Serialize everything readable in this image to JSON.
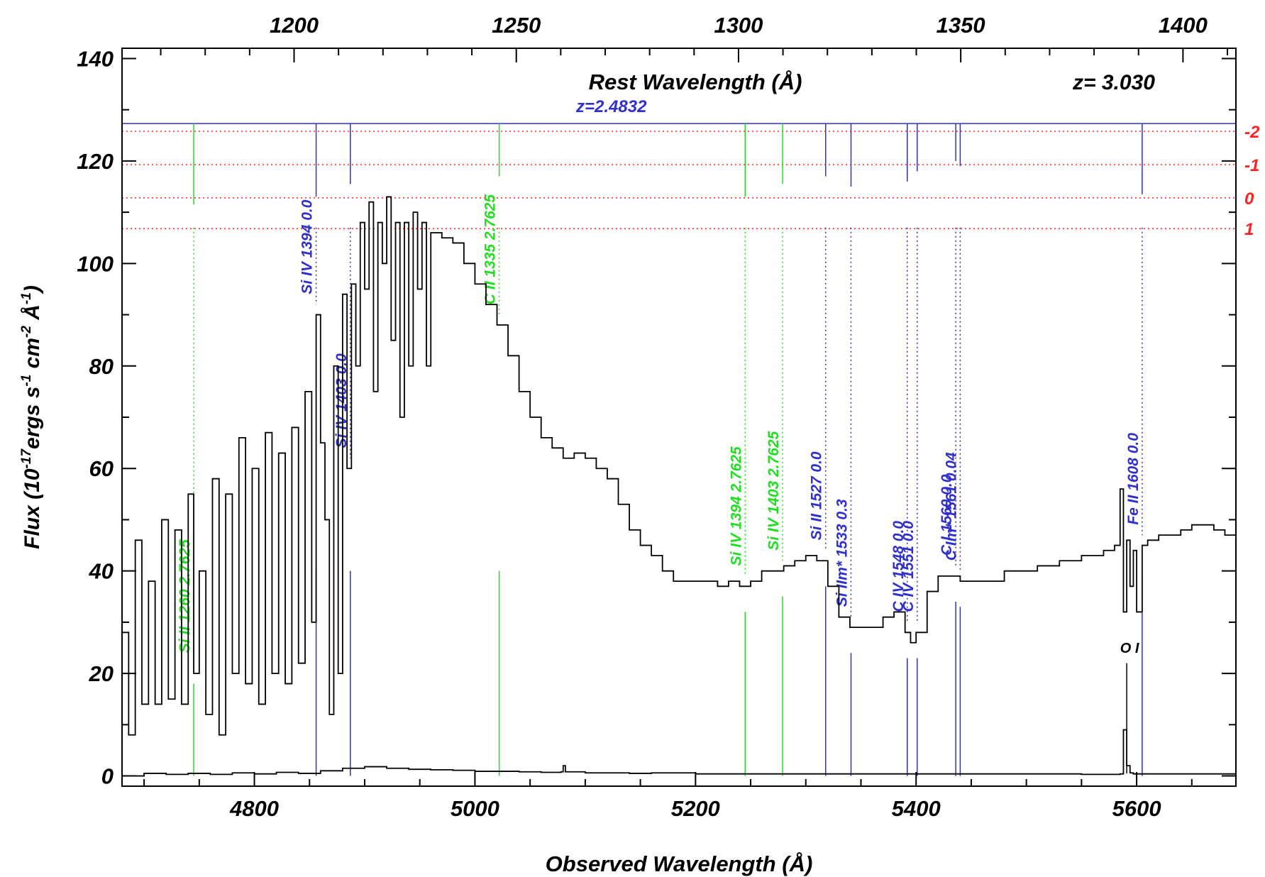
{
  "chart_data": {
    "type": "line",
    "xlabel": "Observed Wavelength (Å)",
    "ylabel": "Flux (10-17ergs s-1 cm-2 Å-1)",
    "ylabel_parts": [
      "Flux (10",
      "-17",
      "ergs s",
      "-1",
      " cm",
      "-2",
      " Å",
      "-1",
      ")"
    ],
    "top_axis_label": "Rest Wavelength (Å)",
    "redshift_label": "z= 3.030",
    "absorber_label": "z=2.4832",
    "xlim": [
      4680,
      5690
    ],
    "ylim": [
      -2,
      142
    ],
    "x_ticks": [
      "4800",
      "5000",
      "5200",
      "5400",
      "5600"
    ],
    "x_tick_values": [
      4800,
      5000,
      5200,
      5400,
      5600
    ],
    "y_ticks": [
      "0",
      "20",
      "40",
      "60",
      "80",
      "100",
      "120",
      "140"
    ],
    "y_tick_values": [
      0,
      20,
      40,
      60,
      80,
      100,
      120,
      140
    ],
    "top_ticks": [
      "1200",
      "1250",
      "1300",
      "1350",
      "1400"
    ],
    "top_tick_values": [
      1200,
      1250,
      1300,
      1350,
      1400
    ],
    "emission_z": 3.03,
    "right_scale_labels": [
      "-2",
      "-1",
      "0",
      "1"
    ],
    "right_scale_y": [
      125.8,
      119.3,
      112.8,
      106.8
    ],
    "marker_baseline_y": 127.3,
    "grid": false,
    "series": [
      {
        "role": "flux",
        "color": "#000000",
        "x": [
          4680,
          4686,
          4692,
          4698,
          4704,
          4710,
          4716,
          4722,
          4728,
          4734,
          4740,
          4745,
          4750,
          4756,
          4762,
          4768,
          4774,
          4780,
          4786,
          4792,
          4798,
          4804,
          4810,
          4816,
          4822,
          4828,
          4834,
          4840,
          4846,
          4852,
          4856,
          4860,
          4864,
          4868,
          4872,
          4876,
          4880,
          4884,
          4888,
          4892,
          4896,
          4900,
          4904,
          4908,
          4912,
          4916,
          4920,
          4924,
          4928,
          4932,
          4936,
          4940,
          4944,
          4948,
          4952,
          4956,
          4960,
          4970,
          4980,
          4990,
          5000,
          5010,
          5020,
          5030,
          5040,
          5050,
          5060,
          5070,
          5080,
          5090,
          5100,
          5110,
          5120,
          5130,
          5140,
          5150,
          5160,
          5170,
          5180,
          5190,
          5200,
          5210,
          5220,
          5230,
          5240,
          5250,
          5260,
          5270,
          5280,
          5290,
          5300,
          5310,
          5320,
          5330,
          5340,
          5350,
          5360,
          5370,
          5380,
          5390,
          5395,
          5400,
          5410,
          5420,
          5430,
          5440,
          5450,
          5460,
          5470,
          5480,
          5490,
          5500,
          5510,
          5520,
          5530,
          5540,
          5550,
          5560,
          5570,
          5580,
          5585,
          5588,
          5591,
          5594,
          5597,
          5600,
          5605,
          5610,
          5620,
          5630,
          5640,
          5650,
          5660,
          5670,
          5680,
          5690
        ],
        "y": [
          28,
          8,
          46,
          14,
          38,
          14,
          50,
          15,
          48,
          14,
          55,
          20,
          40,
          12,
          58,
          8,
          55,
          20,
          66,
          18,
          60,
          14,
          67,
          20,
          63,
          18,
          68,
          22,
          75,
          30,
          90,
          65,
          50,
          12,
          80,
          20,
          94,
          60,
          96,
          80,
          108,
          95,
          112,
          75,
          108,
          100,
          113,
          85,
          108,
          70,
          108,
          80,
          110,
          95,
          108,
          80,
          106,
          105,
          104,
          100,
          96,
          92,
          88,
          82,
          75,
          70,
          66,
          64,
          62,
          63,
          62,
          60,
          58,
          53,
          48,
          45,
          43,
          40,
          38,
          38,
          38,
          38,
          37,
          38,
          37,
          38,
          40,
          40,
          41,
          42,
          43,
          42,
          37,
          31,
          29,
          29,
          29,
          31,
          32,
          28,
          26,
          28,
          36,
          39,
          39,
          38,
          38,
          38,
          38,
          40,
          40,
          40,
          41,
          41,
          42,
          42,
          43,
          43,
          44,
          45,
          56,
          32,
          46,
          37,
          44,
          32,
          45,
          46,
          47,
          47,
          48,
          49,
          49,
          48,
          47,
          46
        ]
      },
      {
        "role": "error",
        "color": "#000000",
        "x": [
          4680,
          4700,
          4720,
          4740,
          4760,
          4780,
          4800,
          4820,
          4840,
          4860,
          4880,
          4900,
          4920,
          4940,
          4960,
          4980,
          5000,
          5020,
          5040,
          5060,
          5078,
          5080,
          5082,
          5100,
          5140,
          5160,
          5200,
          5250,
          5300,
          5350,
          5400,
          5450,
          5500,
          5550,
          5585,
          5588,
          5591,
          5594,
          5597,
          5600,
          5650,
          5690
        ],
        "y": [
          0,
          0.5,
          0.3,
          0.5,
          0.3,
          0.6,
          0.4,
          0.7,
          0.5,
          1,
          1.5,
          1.8,
          1.5,
          1.3,
          1.2,
          1.1,
          0.9,
          0.9,
          0.8,
          0.7,
          0.8,
          2,
          0.8,
          0.6,
          0.5,
          0.6,
          0.4,
          0.4,
          0.4,
          0.4,
          0.4,
          0.4,
          0.4,
          0.3,
          0.4,
          9,
          2,
          0.6,
          0.4,
          0.4,
          0.4,
          0.3
        ]
      }
    ],
    "line_markers": [
      {
        "label": "Si II 1260 2.7625",
        "x": 4745,
        "color": "#22dd22",
        "family": "green",
        "top": 111.5
      },
      {
        "label": "Si IV 1394 0.0",
        "x": 4856,
        "color": "#3030cc",
        "family": "blue",
        "top": 113
      },
      {
        "label": "Si IV 1403 0.0",
        "x": 4887,
        "color": "#3030cc",
        "family": "blue",
        "top": 115.5
      },
      {
        "label": "C II 1335 2.7625",
        "x": 5022,
        "color": "#22dd22",
        "family": "green",
        "top": 117
      },
      {
        "label": "Si IV 1394 2.7625",
        "x": 5245,
        "color": "#22dd22",
        "family": "green",
        "top": 113
      },
      {
        "label": "Si IV 1403 2.7625",
        "x": 5279,
        "color": "#22dd22",
        "family": "green",
        "top": 115.5
      },
      {
        "label": "Si II 1527 0.0",
        "x": 5318,
        "color": "#3030cc",
        "family": "blue",
        "top": 117
      },
      {
        "label": "Si IIm* 1533 0.3",
        "x": 5341,
        "color": "#3030cc",
        "family": "blue",
        "top": 115
      },
      {
        "label": "C IV 1548 0.0",
        "x": 5392,
        "color": "#3030cc",
        "family": "blue",
        "top": 116
      },
      {
        "label": "C IV 1551 0.0",
        "x": 5401,
        "color": "#3030cc",
        "family": "blue",
        "top": 118
      },
      {
        "label": "C I 1560 0.0",
        "x": 5436,
        "color": "#3030cc",
        "family": "blue",
        "top": 120
      },
      {
        "label": "C Im* 1561 0.04",
        "x": 5440,
        "color": "#3030cc",
        "family": "blue",
        "top": 119
      },
      {
        "label": "Fe II 1608 0.0",
        "x": 5605,
        "color": "#3030cc",
        "family": "blue",
        "top": 113.5
      },
      {
        "label": "O I",
        "x": 5591,
        "color": "#000000",
        "family": "black",
        "top": null
      }
    ],
    "colors": {
      "axis": "#000000",
      "absorber": "#3030cc",
      "other_absorber": "#22dd22",
      "ref_lines": "#ff2222"
    }
  }
}
